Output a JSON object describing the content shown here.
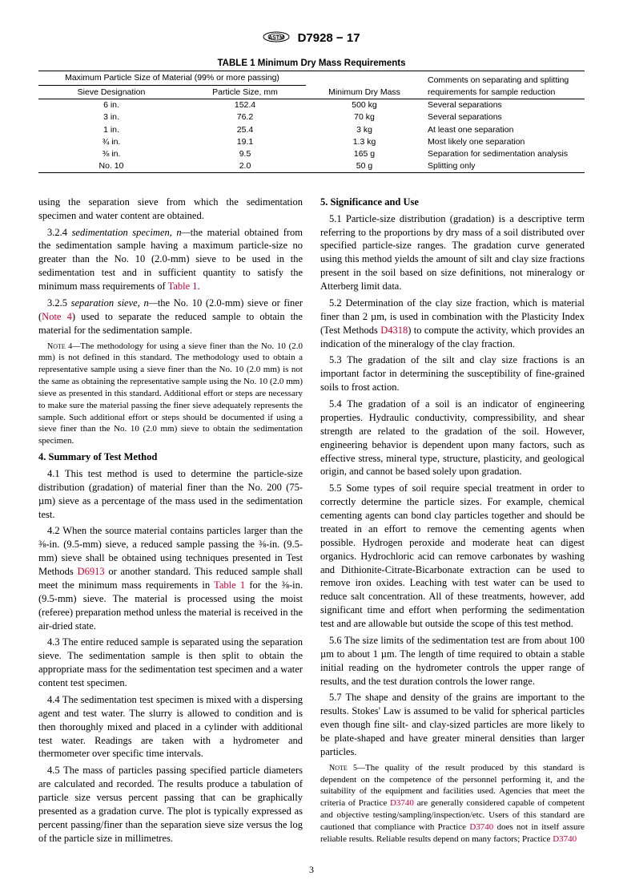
{
  "header": {
    "doc_id": "D7928 − 17"
  },
  "table": {
    "title": "TABLE 1 Minimum Dry Mass Requirements",
    "span_header": "Maximum Particle Size of Material (99% or more passing)",
    "col1": "Sieve Designation",
    "col2": "Particle Size, mm",
    "col3": "Minimum Dry Mass",
    "col4": "Comments on separating and splitting requirements for sample reduction",
    "rows": [
      {
        "sieve": "6 in.",
        "size": "152.4",
        "mass": "500 kg",
        "comment": "Several separations"
      },
      {
        "sieve": "3 in.",
        "size": "76.2",
        "mass": "70 kg",
        "comment": "Several separations"
      },
      {
        "sieve": "1 in.",
        "size": "25.4",
        "mass": "3 kg",
        "comment": "At least one separation"
      },
      {
        "sieve": "¾ in.",
        "size": "19.1",
        "mass": "1.3 kg",
        "comment": "Most likely one separation"
      },
      {
        "sieve": "⅜ in.",
        "size": "9.5",
        "mass": "165 g",
        "comment": "Separation for sedimentation analysis"
      },
      {
        "sieve": "No. 10",
        "size": "2.0",
        "mass": "50 g",
        "comment": "Splitting only"
      }
    ]
  },
  "body": {
    "p_cont": "using the separation sieve from which the sedimentation specimen and water content are obtained.",
    "p324a": "3.2.4 ",
    "p324_term": "sedimentation specimen, n—",
    "p324b": "the material obtained from the sedimentation sample having a maximum particle-size no greater than the No. 10 (2.0-mm) sieve to be used in the sedimentation test and in sufficient quantity to satisfy the minimum mass requirements of ",
    "p324_link": "Table 1",
    "p324c": ".",
    "p325a": "3.2.5 ",
    "p325_term": "separation sieve, n—",
    "p325b": "the No. 10 (2.0-mm) sieve or finer (",
    "p325_link": "Note 4",
    "p325c": ") used to separate the reduced sample to obtain the material for the sedimentation sample.",
    "note4_label": "Note 4—",
    "note4": "The methodology for using a sieve finer than the No. 10 (2.0 mm) is not defined in this standard. The methodology used to obtain a representative sample using a sieve finer than the No. 10 (2.0 mm) is not the same as obtaining the representative sample using the No. 10 (2.0 mm) sieve as presented in this standard. Additional effort or steps are necessary to make sure the material passing the finer sieve adequately represents the sample. Such additional effort or steps should be documented if using a sieve finer than the No. 10 (2.0 mm) sieve to obtain the sedimentation specimen.",
    "sec4": "4. Summary of Test Method",
    "p41": "4.1 This test method is used to determine the particle-size distribution (gradation) of material finer than the No. 200 (75-µm) sieve as a percentage of the mass used in the sedimentation test.",
    "p42a": "4.2 When the source material contains particles larger than the ⅜-in. (9.5-mm) sieve, a reduced sample passing the ⅜-in. (9.5-mm) sieve shall be obtained using techniques presented in Test Methods ",
    "p42_link1": "D6913",
    "p42b": " or another standard. This reduced sample shall meet the minimum mass requirements in ",
    "p42_link2": "Table 1",
    "p42c": " for the ⅜-in. (9.5-mm) sieve. The material is processed using the moist (referee) preparation method unless the material is received in the air-dried state.",
    "p43": "4.3 The entire reduced sample is separated using the separation sieve. The sedimentation sample is then split to obtain the appropriate mass for the sedimentation test specimen and a water content test specimen.",
    "p44": "4.4 The sedimentation test specimen is mixed with a dispersing agent and test water. The slurry is allowed to condition and is then thoroughly mixed and placed in a cylinder with additional test water. Readings are taken with a hydrometer and thermometer over specific time intervals.",
    "p45": "4.5 The mass of particles passing specified particle diameters are calculated and recorded. The results produce a tabulation of particle size versus percent passing that can be graphically presented as a gradation curve. The plot is typically expressed as percent passing/finer than the separation sieve size versus the log of the particle size in millimetres.",
    "sec5": "5. Significance and Use",
    "p51": "5.1 Particle-size distribution (gradation) is a descriptive term referring to the proportions by dry mass of a soil distributed over specified particle-size ranges. The gradation curve generated using this method yields the amount of silt and clay size fractions present in the soil based on size definitions, not mineralogy or Atterberg limit data.",
    "p52a": "5.2 Determination of the clay size fraction, which is material finer than 2 µm, is used in combination with the Plasticity Index (Test Methods ",
    "p52_link": "D4318",
    "p52b": ") to compute the activity, which provides an indication of the mineralogy of the clay fraction.",
    "p53": "5.3 The gradation of the silt and clay size fractions is an important factor in determining the susceptibility of fine-grained soils to frost action.",
    "p54": "5.4 The gradation of a soil is an indicator of engineering properties. Hydraulic conductivity, compressibility, and shear strength are related to the gradation of the soil. However, engineering behavior is dependent upon many factors, such as effective stress, mineral type, structure, plasticity, and geological origin, and cannot be based solely upon gradation.",
    "p55": "5.5 Some types of soil require special treatment in order to correctly determine the particle sizes. For example, chemical cementing agents can bond clay particles together and should be treated in an effort to remove the cementing agents when possible. Hydrogen peroxide and moderate heat can digest organics. Hydrochloric acid can remove carbonates by washing and Dithionite-Citrate-Bicarbonate extraction can be used to remove iron oxides. Leaching with test water can be used to reduce salt concentration. All of these treatments, however, add significant time and effort when performing the sedimentation test and are allowable but outside the scope of this test method.",
    "p56": "5.6 The size limits of the sedimentation test are from about 100 µm to about 1 µm. The length of time required to obtain a stable initial reading on the hydrometer controls the upper range of results, and the test duration controls the lower range.",
    "p57": "5.7 The shape and density of the grains are important to the results. Stokes' Law is assumed to be valid for spherical particles even though fine silt- and clay-sized particles are more likely to be plate-shaped and have greater mineral densities than larger particles.",
    "note5_label": "Note 5—",
    "note5a": "The quality of the result produced by this standard is dependent on the competence of the personnel performing it, and the suitability of the equipment and facilities used. Agencies that meet the criteria of Practice ",
    "note5_link1": "D3740",
    "note5b": " are generally considered capable of competent and objective testing/sampling/inspection/etc. Users of this standard are cautioned that compliance with Practice ",
    "note5_link2": "D3740",
    "note5c": " does not in itself assure reliable results. Reliable results depend on many factors; Practice ",
    "note5_link3": "D3740"
  },
  "pagenum": "3"
}
